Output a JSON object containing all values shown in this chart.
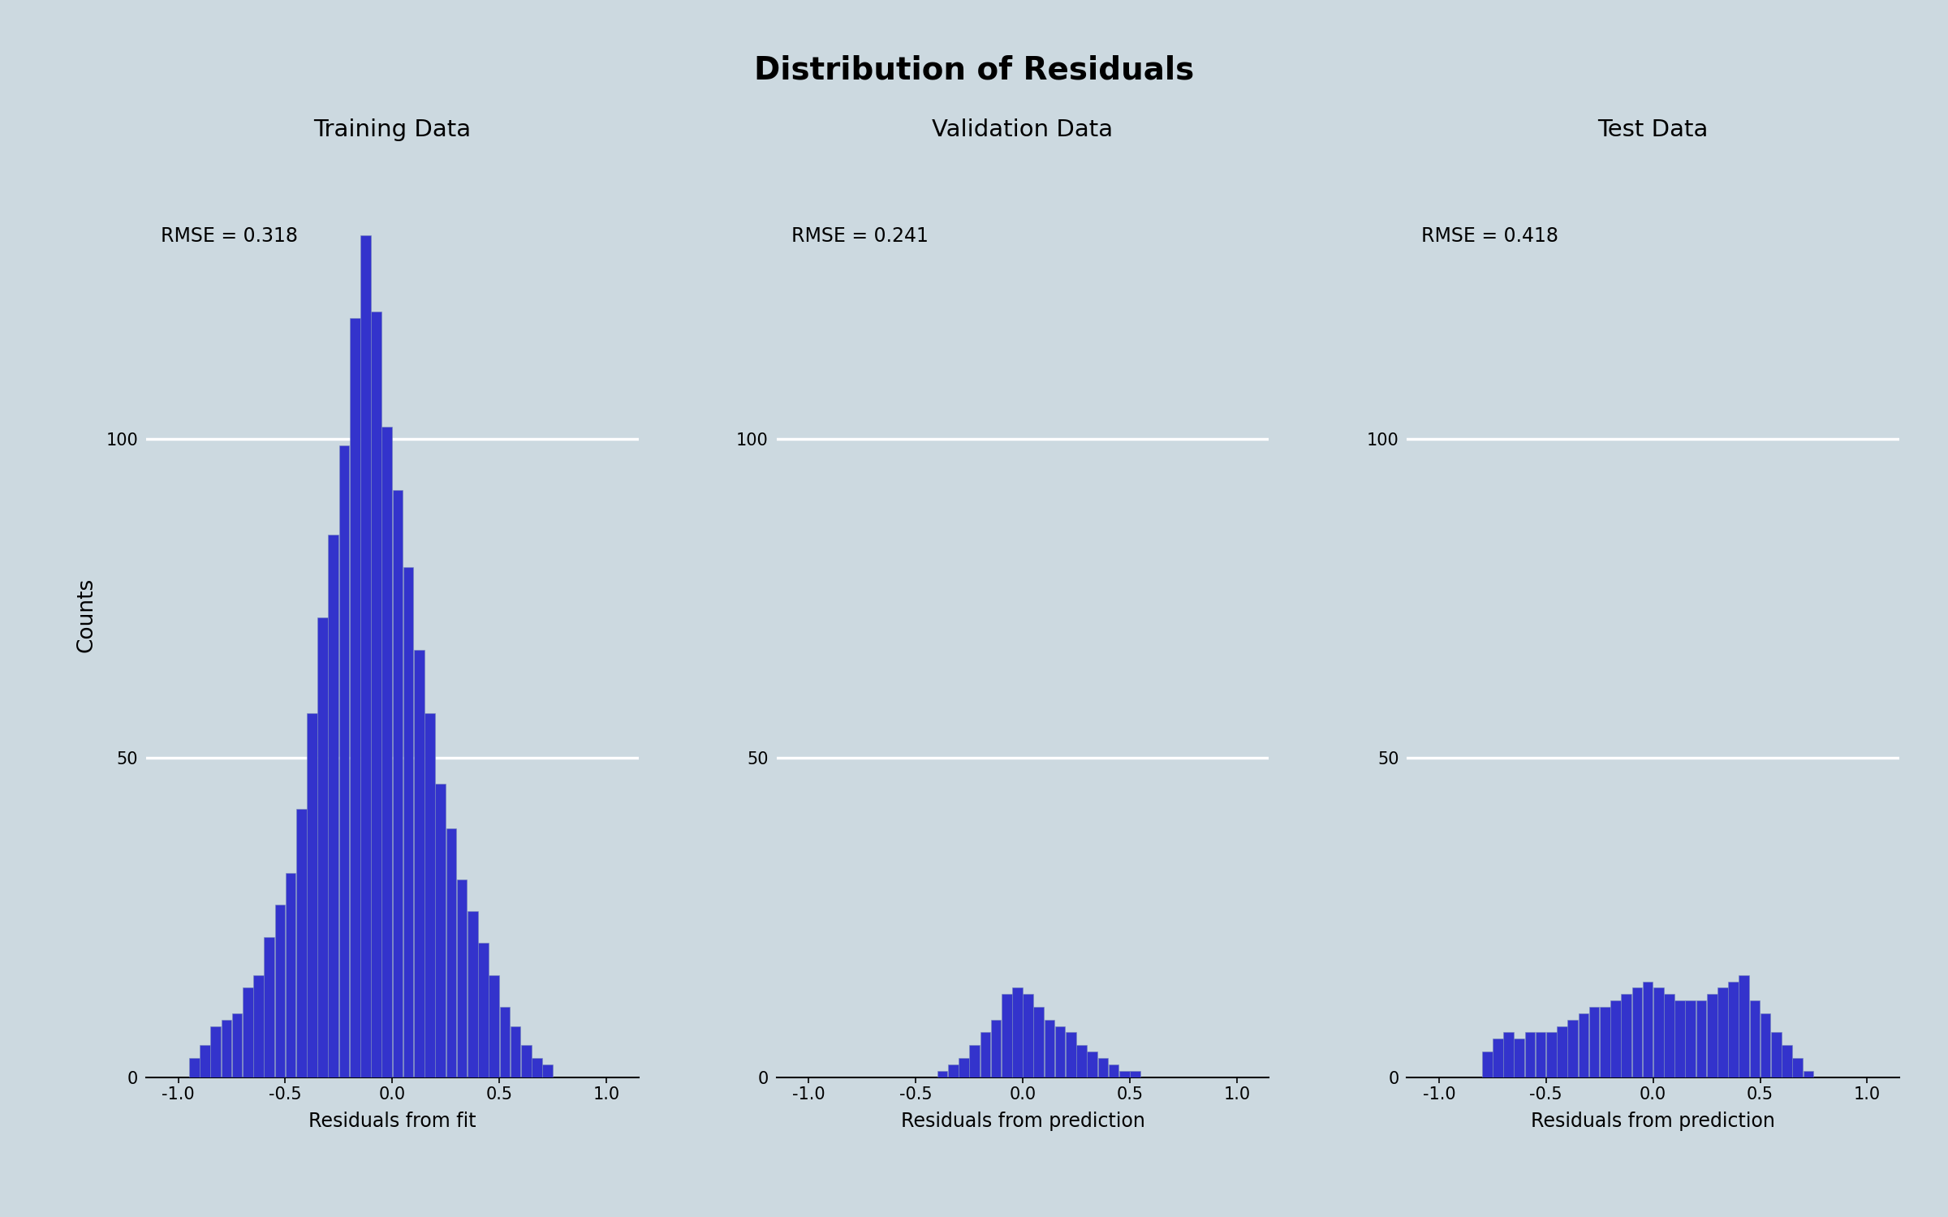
{
  "title": "Distribution of Residuals",
  "background_color": "#ccd9e0",
  "bar_color": "#3333cc",
  "bar_edge_color": "#7788bb",
  "subplot_titles": [
    "Training Data",
    "Validation Data",
    "Test Data"
  ],
  "rmse_values": [
    "RMSE = 0.318",
    "RMSE = 0.241",
    "RMSE = 0.418"
  ],
  "xlabels": [
    "Residuals from fit",
    "Residuals from prediction",
    "Residuals from prediction"
  ],
  "ylabel": "Counts",
  "xlim": [
    -1.15,
    1.15
  ],
  "xticks": [
    -1.0,
    -0.5,
    0.0,
    0.5,
    1.0
  ],
  "yticks": [
    0,
    50,
    100
  ],
  "ylim_train": [
    0,
    145
  ],
  "ylim_other": [
    0,
    145
  ],
  "train_counts": [
    0,
    3,
    5,
    8,
    9,
    10,
    14,
    16,
    22,
    27,
    32,
    42,
    57,
    72,
    85,
    99,
    119,
    132,
    120,
    102,
    92,
    80,
    67,
    57,
    46,
    39,
    31,
    26,
    21,
    16,
    11,
    8,
    5,
    3,
    2,
    0,
    0,
    0,
    0,
    0
  ],
  "val_counts": [
    0,
    0,
    0,
    0,
    0,
    0,
    0,
    0,
    0,
    0,
    0,
    0,
    1,
    2,
    3,
    5,
    7,
    9,
    13,
    14,
    13,
    11,
    9,
    8,
    7,
    5,
    4,
    3,
    2,
    1,
    1,
    0,
    0,
    0,
    0,
    0,
    0,
    0,
    0,
    0
  ],
  "test_counts": [
    0,
    0,
    0,
    0,
    4,
    6,
    7,
    6,
    7,
    7,
    7,
    8,
    9,
    10,
    11,
    11,
    12,
    13,
    14,
    15,
    14,
    13,
    12,
    12,
    12,
    13,
    14,
    15,
    16,
    12,
    10,
    7,
    5,
    3,
    1,
    0,
    0,
    0,
    0,
    0
  ]
}
